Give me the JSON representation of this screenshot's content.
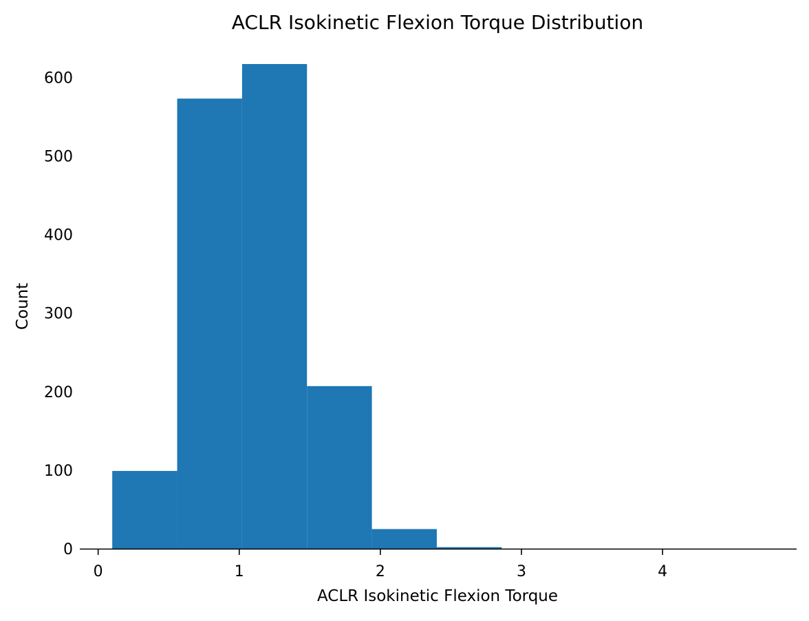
{
  "chart_data": {
    "type": "bar",
    "title": "ACLR Isokinetic Flexion Torque Distribution",
    "xlabel": "ACLR Isokinetic Flexion Torque",
    "ylabel": "Count",
    "bins": [
      {
        "x0": 0.1,
        "x1": 0.56,
        "count": 99
      },
      {
        "x0": 0.56,
        "x1": 1.02,
        "count": 573
      },
      {
        "x0": 1.02,
        "x1": 1.48,
        "count": 617
      },
      {
        "x0": 1.48,
        "x1": 1.94,
        "count": 207
      },
      {
        "x0": 1.94,
        "x1": 2.4,
        "count": 25
      },
      {
        "x0": 2.4,
        "x1": 2.86,
        "count": 2
      },
      {
        "x0": 2.86,
        "x1": 3.32,
        "count": 0
      },
      {
        "x0": 3.32,
        "x1": 3.78,
        "count": 0
      },
      {
        "x0": 3.78,
        "x1": 4.24,
        "count": 0
      },
      {
        "x0": 4.24,
        "x1": 4.7,
        "count": 0
      }
    ],
    "xlim": [
      -0.13,
      4.95
    ],
    "ylim": [
      0,
      617
    ],
    "xticks": [
      0,
      1,
      2,
      3,
      4
    ],
    "yticks": [
      0,
      100,
      200,
      300,
      400,
      500,
      600
    ],
    "bar_color": "#1f77b4",
    "grid": false,
    "legend": "none"
  }
}
